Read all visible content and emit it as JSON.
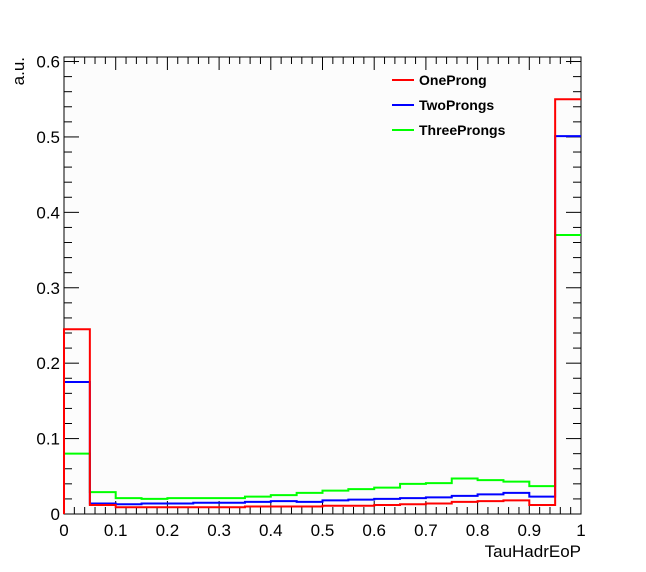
{
  "chart_data": {
    "type": "line",
    "subtype": "step-histogram",
    "xlabel": "TauHadrEoP",
    "ylabel": "a.u.",
    "xlim": [
      0,
      1
    ],
    "ylim": [
      0,
      0.6
    ],
    "x_ticks": [
      "0",
      "0.1",
      "0.2",
      "0.3",
      "0.4",
      "0.5",
      "0.6",
      "0.7",
      "0.8",
      "0.9",
      "1"
    ],
    "y_ticks": [
      "0",
      "0.1",
      "0.2",
      "0.3",
      "0.4",
      "0.5",
      "0.6"
    ],
    "legend_position": "top-right",
    "bin_edges": [
      0,
      0.05,
      0.1,
      0.15,
      0.2,
      0.25,
      0.3,
      0.35,
      0.4,
      0.45,
      0.5,
      0.55,
      0.6,
      0.65,
      0.7,
      0.75,
      0.8,
      0.85,
      0.9,
      0.95,
      1.0
    ],
    "series": [
      {
        "name": "OneProng",
        "color": "#ff0000",
        "values": [
          0.245,
          0.012,
          0.009,
          0.009,
          0.009,
          0.009,
          0.009,
          0.01,
          0.01,
          0.01,
          0.011,
          0.011,
          0.012,
          0.013,
          0.014,
          0.016,
          0.017,
          0.018,
          0.012,
          0.55
        ]
      },
      {
        "name": "TwoProngs",
        "color": "#0000ff",
        "values": [
          0.175,
          0.014,
          0.013,
          0.014,
          0.014,
          0.015,
          0.015,
          0.016,
          0.017,
          0.016,
          0.018,
          0.019,
          0.02,
          0.021,
          0.022,
          0.024,
          0.026,
          0.028,
          0.023,
          0.501
        ]
      },
      {
        "name": "ThreeProngs",
        "color": "#00ff00",
        "values": [
          0.08,
          0.029,
          0.021,
          0.02,
          0.021,
          0.021,
          0.021,
          0.023,
          0.025,
          0.028,
          0.031,
          0.033,
          0.035,
          0.04,
          0.041,
          0.047,
          0.045,
          0.043,
          0.037,
          0.37
        ]
      }
    ]
  }
}
